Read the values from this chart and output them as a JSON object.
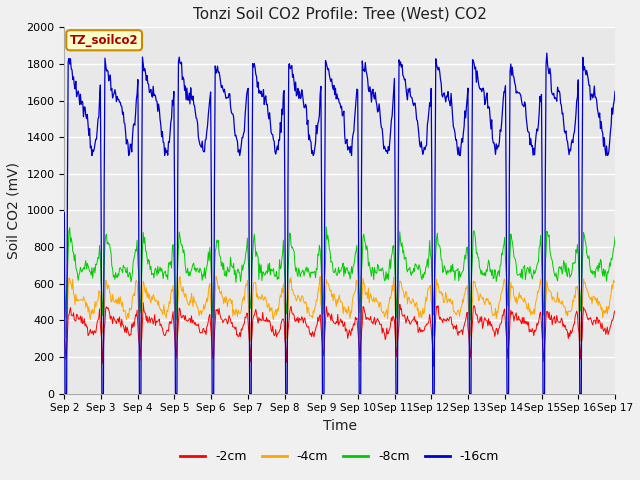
{
  "title": "Tonzi Soil CO2 Profile: Tree (West) CO2",
  "ylabel": "Soil CO2 (mV)",
  "xlabel": "Time",
  "annotation_label": "TZ_soilco2",
  "legend_labels": [
    "-2cm",
    "-4cm",
    "-8cm",
    "-16cm"
  ],
  "legend_colors": [
    "#ff0000",
    "#ffa500",
    "#00cc00",
    "#0000cc"
  ],
  "ylim": [
    0,
    2000
  ],
  "yticks": [
    0,
    200,
    400,
    600,
    800,
    1000,
    1200,
    1400,
    1600,
    1800,
    2000
  ],
  "xtick_labels": [
    "Sep 2",
    "Sep 3",
    "Sep 4",
    "Sep 5",
    "Sep 6",
    "Sep 7",
    "Sep 8",
    "Sep 9",
    "Sep 10",
    "Sep 11",
    "Sep 12",
    "Sep 13",
    "Sep 14",
    "Sep 15",
    "Sep 16",
    "Sep 17"
  ],
  "plot_bg_color": "#e8e8e8",
  "fig_bg_color": "#f0f0f0",
  "title_fontsize": 11,
  "label_fontsize": 10,
  "tick_fontsize": 8,
  "annotation_bg": "#ffffcc",
  "annotation_border": "#cc8800",
  "annotation_color": "#aa0000",
  "n_days": 15,
  "n_pts": 720
}
